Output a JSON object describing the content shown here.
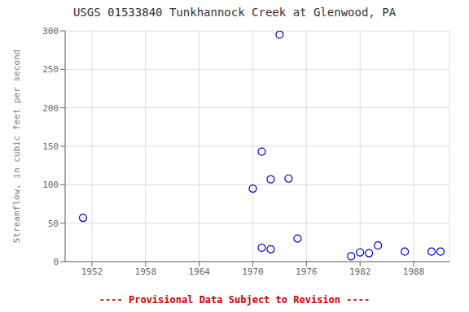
{
  "chart_data": {
    "type": "scatter",
    "title": "USGS 01533840 Tunkhannock Creek at Glenwood, PA",
    "y_label": "Streamflow, in cubic feet per second",
    "annotation": {
      "text": "---- Provisional Data Subject to Revision ----",
      "color": "#cc0000"
    },
    "x": [
      1951,
      1970,
      1971,
      1971,
      1972,
      1972,
      1973,
      1974,
      1975,
      1981,
      1982,
      1983,
      1984,
      1987,
      1990,
      1991
    ],
    "values": [
      57,
      95,
      143,
      18,
      107,
      16,
      295,
      108,
      30,
      7,
      12,
      11,
      21,
      13,
      13,
      13
    ],
    "color": "#0000CC",
    "marker": "open_circle",
    "xlim": [
      1949,
      1992
    ],
    "ylim": [
      0,
      300
    ],
    "xticks": [
      1952,
      1958,
      1964,
      1970,
      1976,
      1982,
      1988
    ],
    "yticks": [
      0,
      50,
      100,
      150,
      200,
      250,
      300
    ],
    "grid": true
  }
}
